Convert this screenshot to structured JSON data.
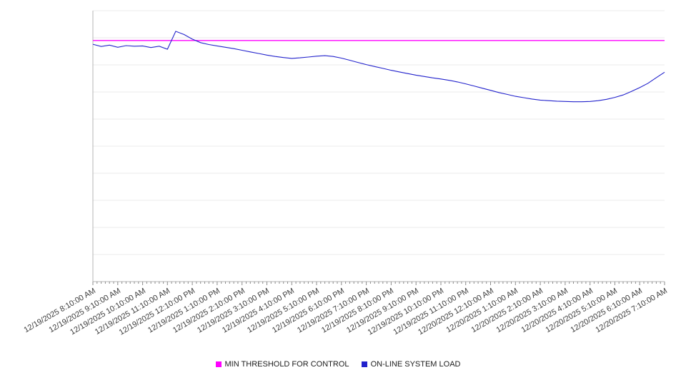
{
  "chart_data": {
    "type": "line",
    "title": "",
    "xlabel": "",
    "ylabel": "",
    "ylim": [
      0,
      100
    ],
    "grid": true,
    "legend_position": "bottom",
    "y_tick_labels": [],
    "x_minor_ticks_per_interval": 6,
    "x_tick_labels": [
      "12/19/2025 8:10:00 AM",
      "12/19/2025 9:10:00 AM",
      "12/19/2025 10:10:00 AM",
      "12/19/2025 11:10:00 AM",
      "12/19/2025 12:10:00 PM",
      "12/19/2025 1:10:00 PM",
      "12/19/2025 2:10:00 PM",
      "12/19/2025 3:10:00 PM",
      "12/19/2025 4:10:00 PM",
      "12/19/2025 5:10:00 PM",
      "12/19/2025 6:10:00 PM",
      "12/19/2025 7:10:00 PM",
      "12/19/2025 8:10:00 PM",
      "12/19/2025 9:10:00 PM",
      "12/19/2025 10:10:00 PM",
      "12/19/2025 11:10:00 PM",
      "12/20/2025 12:10:00 AM",
      "12/20/2025 1:10:00 AM",
      "12/20/2025 2:10:00 AM",
      "12/20/2025 3:10:00 AM",
      "12/20/2025 4:10:00 AM",
      "12/20/2025 5:10:00 AM",
      "12/20/2025 6:10:00 AM",
      "12/20/2025 7:10:00 AM"
    ],
    "series": [
      {
        "name": "MIN THRESHOLD FOR CONTROL",
        "color": "#ff00ff",
        "style": "threshold",
        "value": 89
      },
      {
        "name": "ON-LINE SYSTEM LOAD",
        "color": "#2222cc",
        "style": "line",
        "samples_per_hour": 3,
        "values": [
          87.6,
          86.8,
          87.3,
          86.5,
          87.1,
          86.9,
          87.0,
          86.4,
          86.9,
          85.8,
          92.4,
          91.2,
          89.5,
          88.2,
          87.5,
          87.0,
          86.5,
          86.0,
          85.4,
          84.8,
          84.2,
          83.6,
          83.1,
          82.7,
          82.4,
          82.6,
          82.9,
          83.2,
          83.4,
          83.1,
          82.5,
          81.7,
          80.9,
          80.1,
          79.4,
          78.7,
          78.0,
          77.4,
          76.8,
          76.2,
          75.7,
          75.2,
          74.8,
          74.3,
          73.7,
          73.0,
          72.2,
          71.4,
          70.6,
          69.8,
          69.1,
          68.4,
          67.9,
          67.4,
          67.0,
          66.8,
          66.6,
          66.5,
          66.4,
          66.4,
          66.5,
          66.8,
          67.3,
          68.0,
          68.9,
          70.2,
          71.6,
          73.2,
          75.3,
          77.3
        ]
      }
    ]
  }
}
